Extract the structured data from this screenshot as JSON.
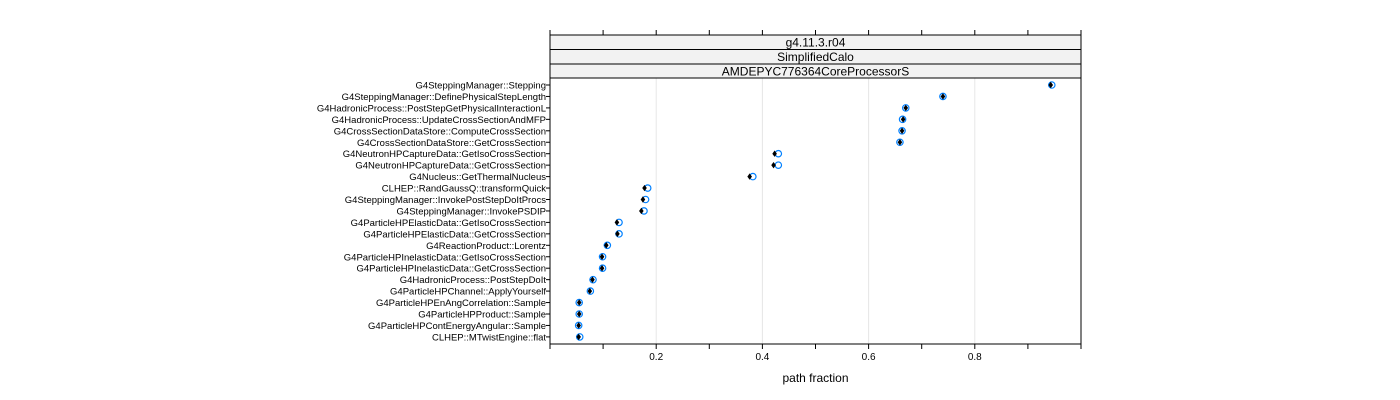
{
  "chart_data": {
    "type": "scatter",
    "strips": [
      "g4.11.3.r04",
      "SimplifiedCalo",
      "AMDEPYC776364CoreProcessorS"
    ],
    "xlabel": "path fraction",
    "ylabel": "",
    "xlim": [
      0.0,
      1.0
    ],
    "x_ticks": [
      0.2,
      0.4,
      0.6,
      0.8
    ],
    "grid": true,
    "colors": {
      "filled_marker": "#000000",
      "open_marker": "#0080ff",
      "grid": "#e6e6e6",
      "strip_fill": "#f2f2f2"
    },
    "categories": [
      "G4SteppingManager::Stepping",
      "G4SteppingManager::DefinePhysicalStepLength",
      "G4HadronicProcess::PostStepGetPhysicalInteractionL",
      "G4HadronicProcess::UpdateCrossSectionAndMFP",
      "G4CrossSectionDataStore::ComputeCrossSection",
      "G4CrossSectionDataStore::GetCrossSection",
      "G4NeutronHPCaptureData::GetIsoCrossSection",
      "G4NeutronHPCaptureData::GetCrossSection",
      "G4Nucleus::GetThermalNucleus",
      "CLHEP::RandGaussQ::transformQuick",
      "G4SteppingManager::InvokePostStepDoItProcs",
      "G4SteppingManager::InvokePSDIP",
      "G4ParticleHPElasticData::GetIsoCrossSection",
      "G4ParticleHPElasticData::GetCrossSection",
      "G4ReactionProduct::Lorentz",
      "G4ParticleHPInelasticData::GetIsoCrossSection",
      "G4ParticleHPInelasticData::GetCrossSection",
      "G4HadronicProcess::PostStepDoIt",
      "G4ParticleHPChannel::ApplyYourself",
      "G4ParticleHPEnAngCorrelation::Sample",
      "G4ParticleHPProduct::Sample",
      "G4ParticleHPContEnergyAngular::Sample",
      "CLHEP::MTwistEngine::flat"
    ],
    "series": [
      {
        "marker": "filled-diamond",
        "values": [
          0.943,
          0.74,
          0.67,
          0.665,
          0.663,
          0.659,
          0.423,
          0.421,
          0.376,
          0.178,
          0.175,
          0.172,
          0.126,
          0.127,
          0.106,
          0.098,
          0.098,
          0.08,
          0.075,
          0.055,
          0.055,
          0.054,
          0.054
        ]
      },
      {
        "marker": "open-circle",
        "values": [
          0.945,
          0.74,
          0.67,
          0.664,
          0.663,
          0.659,
          0.43,
          0.43,
          0.382,
          0.184,
          0.18,
          0.177,
          0.13,
          0.13,
          0.108,
          0.099,
          0.099,
          0.081,
          0.076,
          0.055,
          0.055,
          0.054,
          0.056
        ]
      }
    ]
  }
}
